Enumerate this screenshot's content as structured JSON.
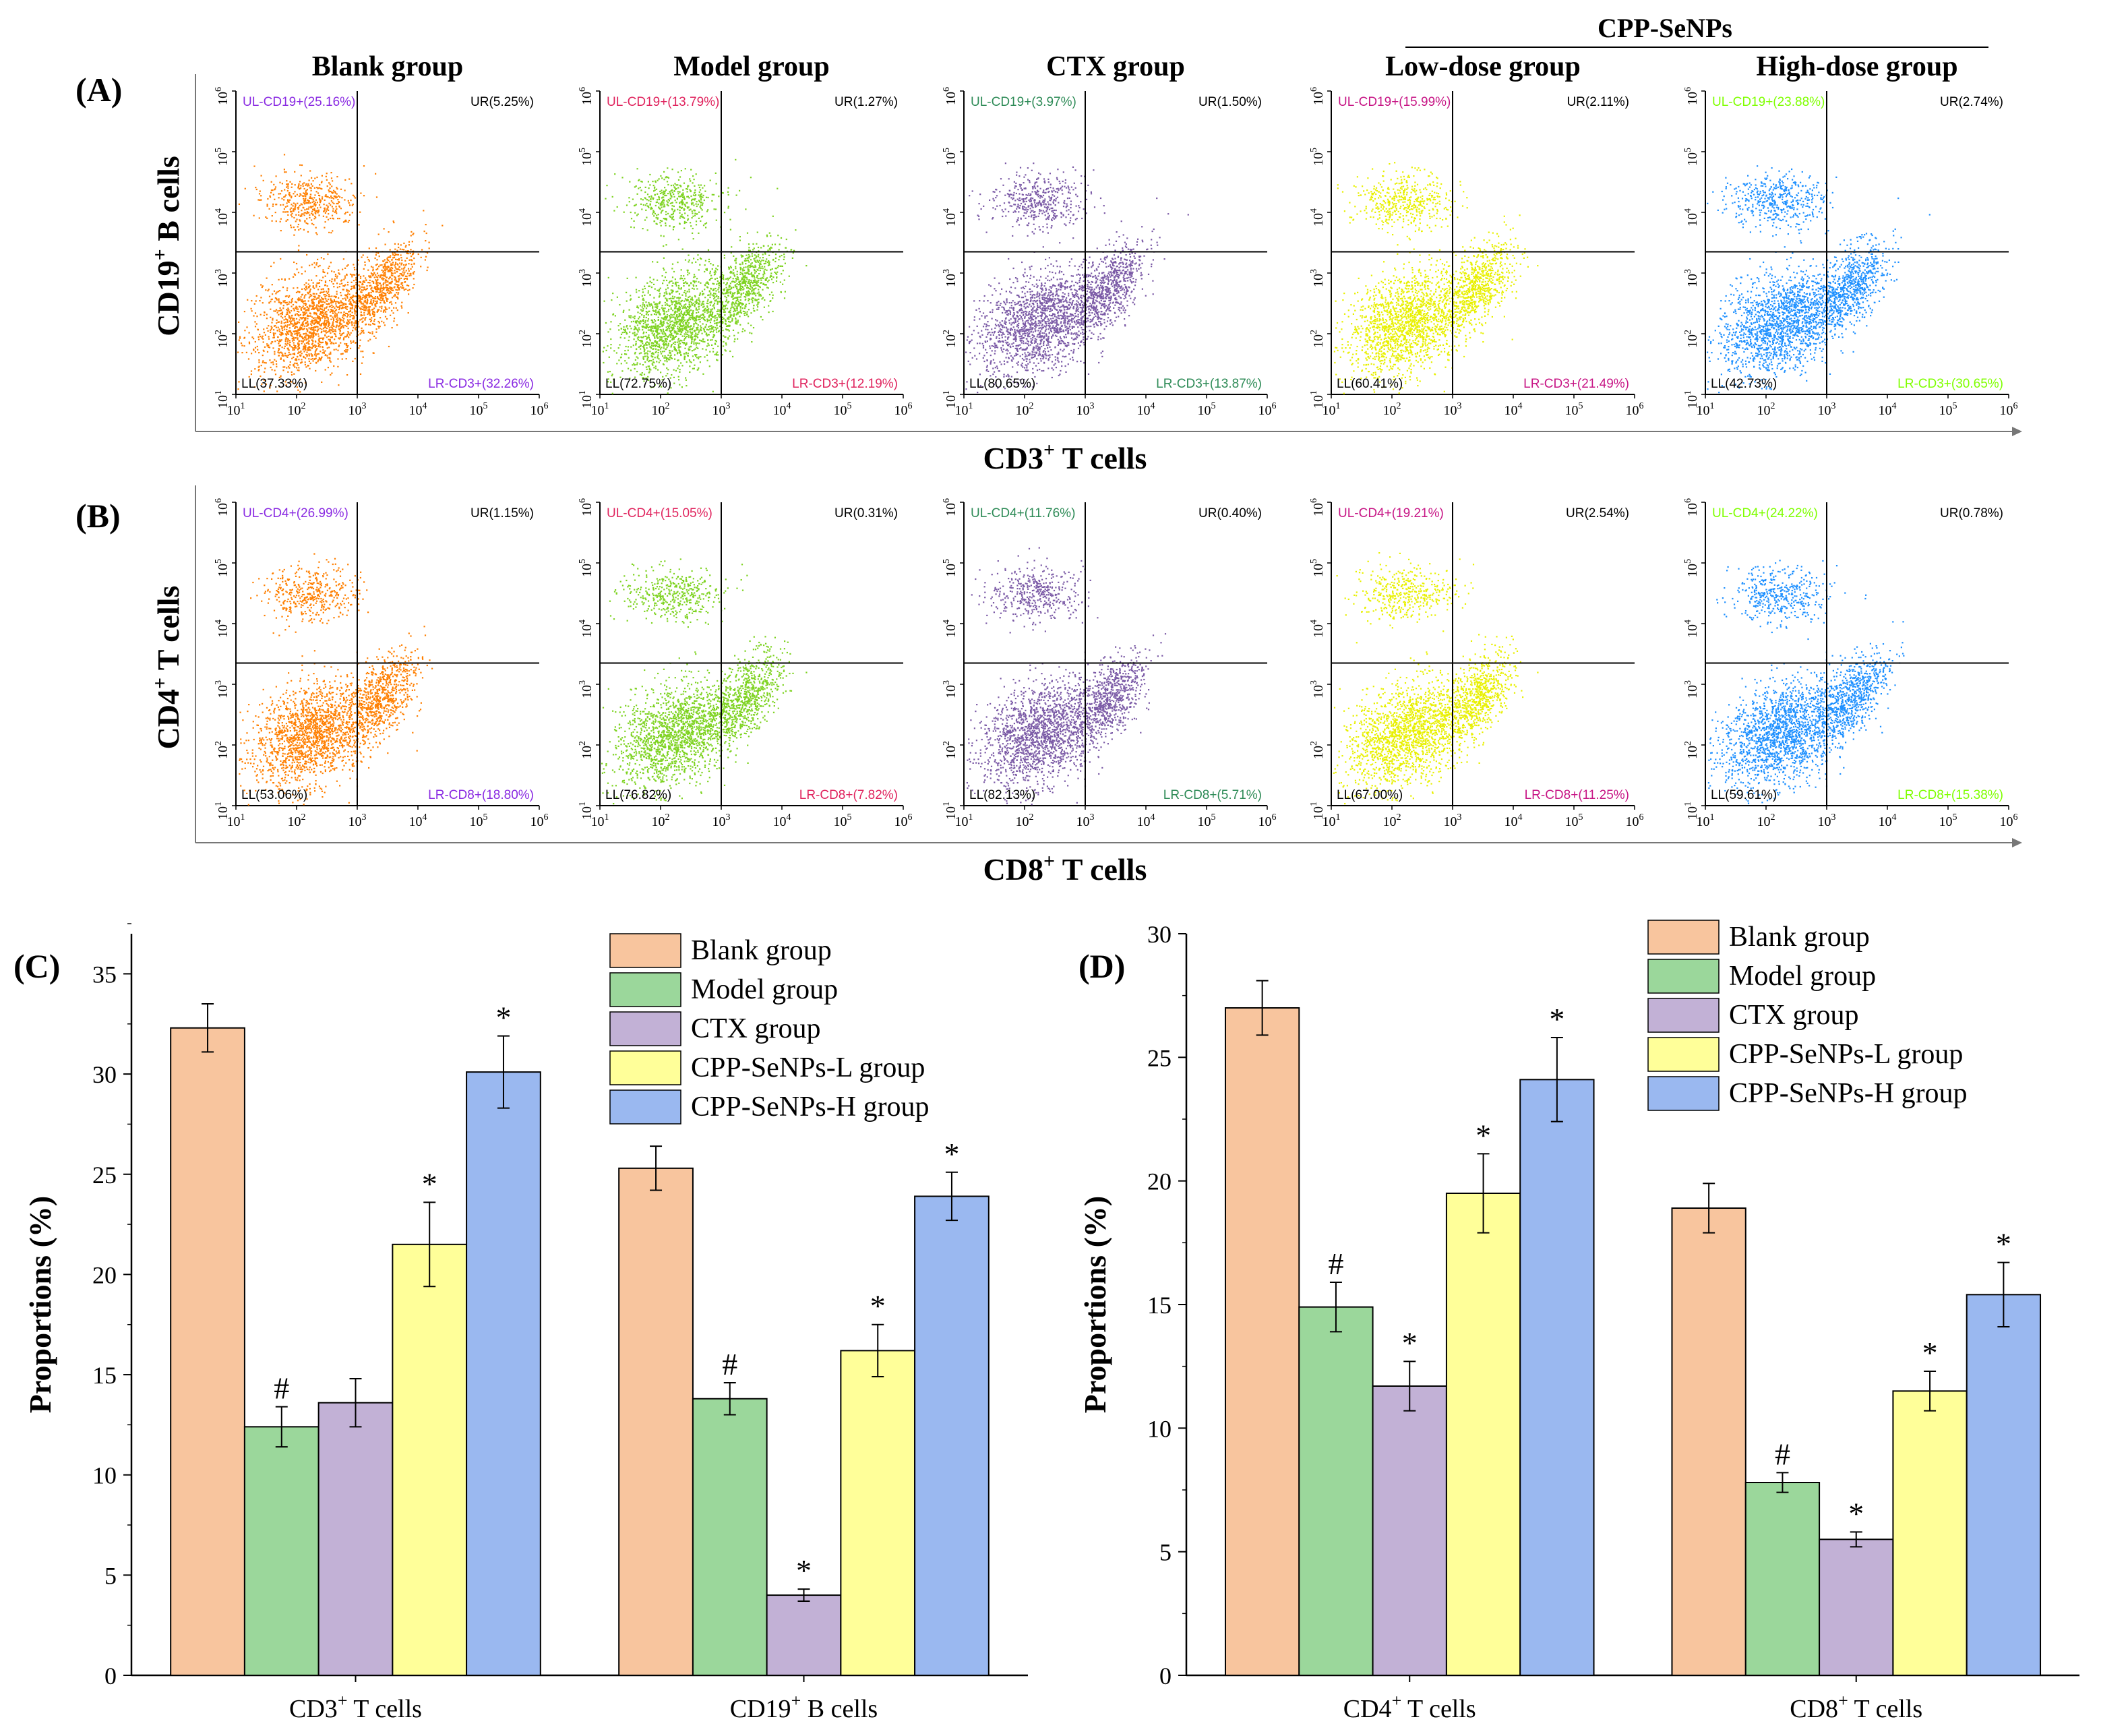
{
  "colors": {
    "blank": "#F4A460",
    "blank_bar": "#F8C59E",
    "model": "#7ED321",
    "model_bar": "#9BD79B",
    "ctx": "#7B5AA6",
    "ctx_bar": "#C2B1D6",
    "low": "#E8F000",
    "low_bar": "#FFFF99",
    "high": "#1E90FF",
    "high_bar": "#9AB8F0",
    "blank_dot": "#FF7F00"
  },
  "panel_a": {
    "label": "(A)",
    "y_title": "CD19",
    "y_title_sup": "+",
    "y_title_rest": " B cells",
    "x_title": "CD3",
    "x_title_sup": "+",
    "x_title_rest": " T cells",
    "header_cpp": "CPP-SeNPs",
    "groups": [
      {
        "title": "Blank group",
        "ul": "UL-CD19+(25.16%)",
        "ur": "UR(5.25%)",
        "ll": "LL(37.33%)",
        "lr": "LR-CD3+(32.26%)",
        "quad_color": "#8A2BE2",
        "dot": "#FF7F00"
      },
      {
        "title": "Model group",
        "ul": "UL-CD19+(13.79%)",
        "ur": "UR(1.27%)",
        "ll": "LL(72.75%)",
        "lr": "LR-CD3+(12.19%)",
        "quad_color": "#E0245E",
        "dot": "#7ED321"
      },
      {
        "title": "CTX group",
        "ul": "UL-CD19+(3.97%)",
        "ur": "UR(1.50%)",
        "ll": "LL(80.65%)",
        "lr": "LR-CD3+(13.87%)",
        "quad_color": "#2E8B57",
        "dot": "#7B5AA6"
      },
      {
        "title": "Low-dose group",
        "ul": "UL-CD19+(15.99%)",
        "ur": "UR(2.11%)",
        "ll": "LL(60.41%)",
        "lr": "LR-CD3+(21.49%)",
        "quad_color": "#C71585",
        "dot": "#E8F000"
      },
      {
        "title": "High-dose group",
        "ul": "UL-CD19+(23.88%)",
        "ur": "UR(2.74%)",
        "ll": "LL(42.73%)",
        "lr": "LR-CD3+(30.65%)",
        "quad_color": "#7FFF00",
        "dot": "#1E90FF"
      }
    ]
  },
  "panel_b": {
    "label": "(B)",
    "y_title": "CD4",
    "y_title_sup": "+",
    "y_title_rest": " T cells",
    "x_title": "CD8",
    "x_title_sup": "+",
    "x_title_rest": " T cells",
    "groups": [
      {
        "ul": "UL-CD4+(26.99%)",
        "ur": "UR(1.15%)",
        "ll": "LL(53.06%)",
        "lr": "LR-CD8+(18.80%)",
        "quad_color": "#8A2BE2",
        "dot": "#FF7F00"
      },
      {
        "ul": "UL-CD4+(15.05%)",
        "ur": "UR(0.31%)",
        "ll": "LL(76.82%)",
        "lr": "LR-CD8+(7.82%)",
        "quad_color": "#E0245E",
        "dot": "#7ED321"
      },
      {
        "ul": "UL-CD4+(11.76%)",
        "ur": "UR(0.40%)",
        "ll": "LL(82.13%)",
        "lr": "LR-CD8+(5.71%)",
        "quad_color": "#2E8B57",
        "dot": "#7B5AA6"
      },
      {
        "ul": "UL-CD4+(19.21%)",
        "ur": "UR(2.54%)",
        "ll": "LL(67.00%)",
        "lr": "LR-CD8+(11.25%)",
        "quad_color": "#C71585",
        "dot": "#E8F000"
      },
      {
        "ul": "UL-CD4+(24.22%)",
        "ur": "UR(0.78%)",
        "ll": "LL(59.61%)",
        "lr": "LR-CD8+(15.38%)",
        "quad_color": "#7FFF00",
        "dot": "#1E90FF"
      }
    ]
  },
  "flow_ticks": {
    "exponents": [
      "1",
      "2",
      "3",
      "4",
      "5",
      "6"
    ],
    "base": "10"
  },
  "chart_data": [
    {
      "type": "bar",
      "panel": "(C)",
      "title": "",
      "ylabel": "Proportions (%)",
      "xlabel": "",
      "ylim": [
        0,
        37
      ],
      "yticks": [
        0,
        5,
        10,
        15,
        20,
        25,
        30,
        35
      ],
      "categories": [
        {
          "name": "CD3",
          "sup": "+",
          "rest": " T cells"
        },
        {
          "name": "CD19",
          "sup": "+",
          "rest": " B cells"
        }
      ],
      "series": [
        {
          "name": "Blank group",
          "values": [
            32.3,
            25.3
          ],
          "errors": [
            1.2,
            1.1
          ],
          "marks": [
            "",
            ""
          ]
        },
        {
          "name": "Model group",
          "values": [
            12.4,
            13.8
          ],
          "errors": [
            1.0,
            0.8
          ],
          "marks": [
            "#",
            "#"
          ]
        },
        {
          "name": "CTX group",
          "values": [
            13.6,
            4.0
          ],
          "errors": [
            1.2,
            0.3
          ],
          "marks": [
            "",
            "*"
          ]
        },
        {
          "name": "CPP-SeNPs-L group",
          "values": [
            21.5,
            16.2
          ],
          "errors": [
            2.1,
            1.3
          ],
          "marks": [
            "*",
            "*"
          ]
        },
        {
          "name": "CPP-SeNPs-H group",
          "values": [
            30.1,
            23.9
          ],
          "errors": [
            1.8,
            1.2
          ],
          "marks": [
            "*",
            "*"
          ]
        }
      ],
      "legend": "top-right"
    },
    {
      "type": "bar",
      "panel": "(D)",
      "title": "",
      "ylabel": "Proportions (%)",
      "xlabel": "",
      "ylim": [
        0,
        30
      ],
      "yticks": [
        0,
        5,
        10,
        15,
        20,
        25,
        30
      ],
      "categories": [
        {
          "name": "CD4",
          "sup": "+",
          "rest": " T cells"
        },
        {
          "name": "CD8",
          "sup": "+",
          "rest": " T cells"
        }
      ],
      "series": [
        {
          "name": "Blank group",
          "values": [
            27.0,
            18.9
          ],
          "errors": [
            1.1,
            1.0
          ],
          "marks": [
            "",
            ""
          ]
        },
        {
          "name": "Model group",
          "values": [
            14.9,
            7.8
          ],
          "errors": [
            1.0,
            0.4
          ],
          "marks": [
            "#",
            "#"
          ]
        },
        {
          "name": "CTX group",
          "values": [
            11.7,
            5.5
          ],
          "errors": [
            1.0,
            0.3
          ],
          "marks": [
            "*",
            "*"
          ]
        },
        {
          "name": "CPP-SeNPs-L group",
          "values": [
            19.5,
            11.5
          ],
          "errors": [
            1.6,
            0.8
          ],
          "marks": [
            "*",
            "*"
          ]
        },
        {
          "name": "CPP-SeNPs-H group",
          "values": [
            24.1,
            15.4
          ],
          "errors": [
            1.7,
            1.3
          ],
          "marks": [
            "*",
            "*"
          ]
        }
      ],
      "legend": "top-right"
    }
  ]
}
